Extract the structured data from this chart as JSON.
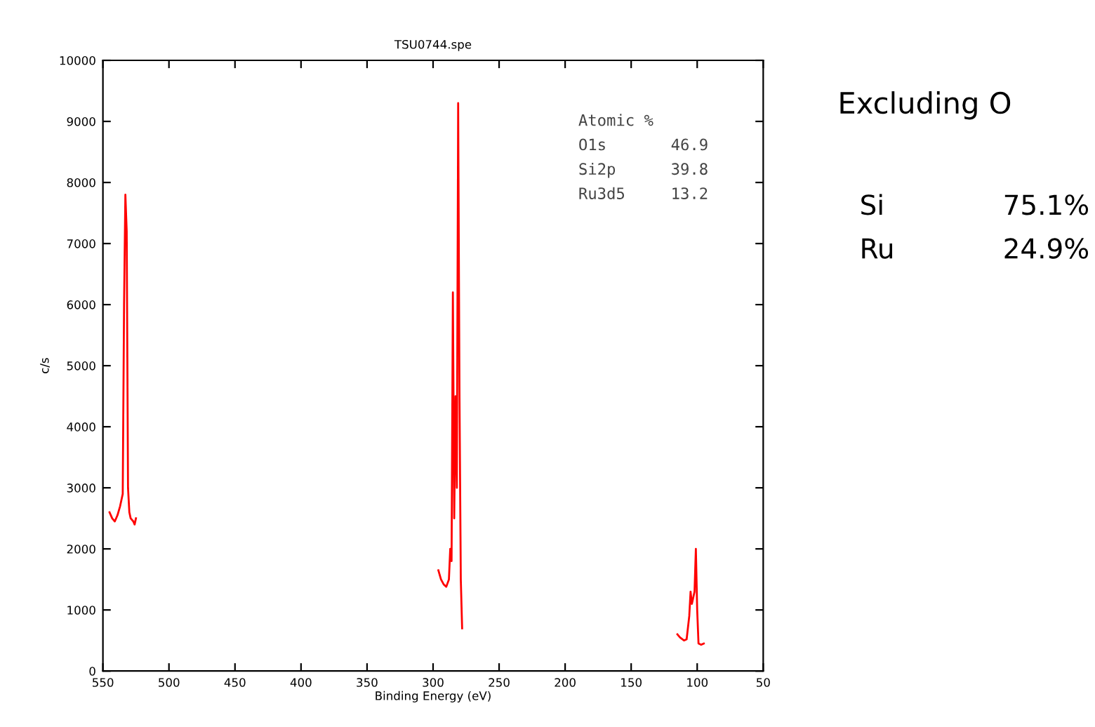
{
  "chart_data": {
    "type": "line",
    "title": "TSU0744.spe",
    "xlabel": "Binding Energy (eV)",
    "ylabel": "c/s",
    "x": [
      545,
      543,
      541,
      539,
      537,
      535,
      534,
      533,
      532,
      531,
      530,
      529,
      527,
      526,
      525,
      null,
      296,
      294,
      292,
      290,
      288,
      287,
      286,
      285,
      284,
      283,
      282,
      281,
      280,
      279,
      278,
      null,
      115,
      113,
      110,
      108,
      106,
      105,
      104,
      103,
      102,
      101,
      100,
      99,
      97,
      95
    ],
    "series": [
      {
        "color": "#ff0000",
        "values": [
          2600,
          2500,
          2450,
          2550,
          2700,
          2900,
          6000,
          7800,
          7200,
          3000,
          2600,
          2500,
          2450,
          2400,
          2500,
          null,
          1650,
          1500,
          1420,
          1380,
          1500,
          2000,
          1800,
          6200,
          2500,
          4500,
          3000,
          9300,
          4500,
          1500,
          700,
          null,
          600,
          550,
          500,
          520,
          900,
          1300,
          1100,
          1200,
          1300,
          2000,
          1000,
          450,
          430,
          450
        ]
      }
    ],
    "xlim": [
      550,
      50
    ],
    "xticks": [
      550,
      500,
      450,
      400,
      350,
      300,
      250,
      200,
      150,
      100,
      50
    ],
    "ylim": [
      0,
      10000
    ],
    "yticks": [
      0,
      1000,
      2000,
      3000,
      4000,
      5000,
      6000,
      7000,
      8000,
      9000,
      10000
    ],
    "grid": false,
    "legend": false,
    "marker": "none",
    "line_style": "solid",
    "annotations": [
      "Atomic %",
      "O1s",
      "46.9",
      "Si2p",
      "39.8",
      "Ru3d5",
      "13.2",
      "Excluding O",
      "Si",
      "75.1%",
      "Ru",
      "24.9%"
    ]
  }
}
